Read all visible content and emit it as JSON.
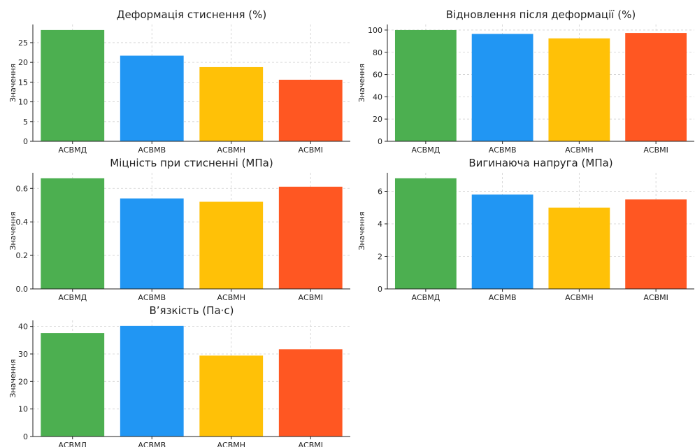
{
  "colors": {
    "АСВМД": "#4caf50",
    "АСВМВ": "#2196f3",
    "АСВМН": "#ffc107",
    "АСВМІ": "#ff5722"
  },
  "chart_data": [
    {
      "type": "bar",
      "title": "Деформація стиснення (%)",
      "ylabel": "Значення",
      "categories": [
        "АСВМД",
        "АСВМВ",
        "АСВМН",
        "АСВМІ"
      ],
      "values": [
        28.2,
        21.7,
        18.8,
        15.6
      ],
      "ylim": [
        0,
        29.6
      ],
      "yticks": [
        0,
        5,
        10,
        15,
        20,
        25
      ],
      "tick_labels": [
        "0",
        "5",
        "10",
        "15",
        "20",
        "25"
      ],
      "grid": true
    },
    {
      "type": "bar",
      "title": "Відновлення після деформації (%)",
      "ylabel": "Значення",
      "categories": [
        "АСВМД",
        "АСВМВ",
        "АСВМН",
        "АСВМІ"
      ],
      "values": [
        100,
        96.5,
        92.5,
        97.4
      ],
      "ylim": [
        0,
        105
      ],
      "yticks": [
        0,
        20,
        40,
        60,
        80,
        100
      ],
      "tick_labels": [
        "0",
        "20",
        "40",
        "60",
        "80",
        "100"
      ],
      "grid": true
    },
    {
      "type": "bar",
      "title": "Міцність при стисненні (МПа)",
      "ylabel": "Значення",
      "categories": [
        "АСВМД",
        "АСВМВ",
        "АСВМН",
        "АСВМІ"
      ],
      "values": [
        0.66,
        0.54,
        0.52,
        0.61
      ],
      "ylim": [
        0,
        0.693
      ],
      "yticks": [
        0,
        0.2,
        0.4,
        0.6
      ],
      "tick_labels": [
        "0.0",
        "0.2",
        "0.4",
        "0.6"
      ],
      "grid": true
    },
    {
      "type": "bar",
      "title": "Вигинаюча напруга (МПа)",
      "ylabel": "Значення",
      "categories": [
        "АСВМД",
        "АСВМВ",
        "АСВМН",
        "АСВМІ"
      ],
      "values": [
        6.8,
        5.8,
        5.0,
        5.5
      ],
      "ylim": [
        0,
        7.14
      ],
      "yticks": [
        0,
        2,
        4,
        6
      ],
      "tick_labels": [
        "0",
        "2",
        "4",
        "6"
      ],
      "grid": true
    },
    {
      "type": "bar",
      "title": "В’язкість (Па·с)",
      "ylabel": "Значення",
      "categories": [
        "АСВМД",
        "АСВМВ",
        "АСВМН",
        "АСВМІ"
      ],
      "values": [
        37.6,
        40.2,
        29.4,
        31.7
      ],
      "ylim": [
        0,
        42.2
      ],
      "yticks": [
        0,
        10,
        20,
        30,
        40
      ],
      "tick_labels": [
        "0",
        "10",
        "20",
        "30",
        "40"
      ],
      "grid": true
    }
  ]
}
